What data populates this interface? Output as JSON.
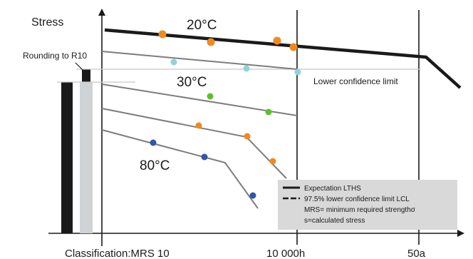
{
  "figure": {
    "y_axis_label": "Stress",
    "rounding_label": "Rounding to R10",
    "lcl_label": "Lower confidence limit",
    "temperatures": {
      "t20": "20°C",
      "t30": "30°C",
      "t80": "80°C"
    },
    "x_ticks": {
      "classification": "Classification:MRS 10",
      "t10000h": "10 000h",
      "t50a": "50a"
    },
    "legend": {
      "items": [
        "Expectation LTHS",
        "97.5% lower confidence limit LCL",
        "MRS= minimum required strengthσ",
        "s=calculated stress"
      ]
    },
    "colors": {
      "axis": "#1a1a1a",
      "lths_line": "#1a1a1a",
      "gray_line": "#7d7d7d",
      "ref_line": "#c8c8c8",
      "point_orange": "#f08a1c",
      "point_cyan": "#8fd3d8",
      "point_green": "#5fbf2a",
      "point_blue": "#2f56a8",
      "legend_bg": "#d9d9d9",
      "bar_black": "#1a1a1a",
      "bar_gray": "#cfd3d6"
    }
  }
}
